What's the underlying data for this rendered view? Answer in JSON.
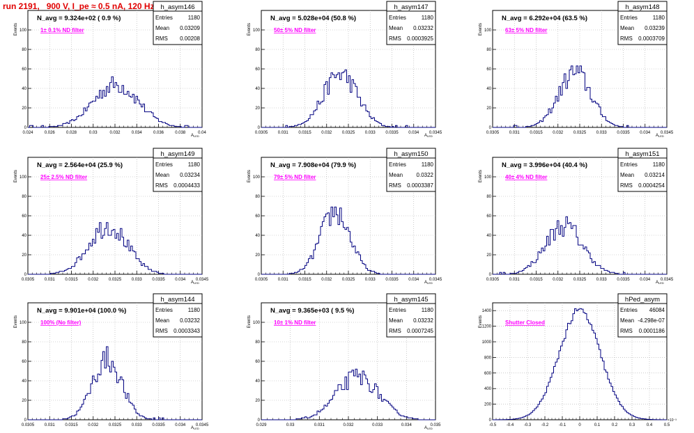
{
  "run_title": "run 2191,   900 V, I_pe ≈ 0.5 nA, 120 Hz",
  "colors": {
    "title": "#e00000",
    "annotation": "#ff00ff",
    "histogram": "#000080",
    "grid": "#aaaaaa"
  },
  "chart_data": [
    {
      "type": "histogram",
      "name": "h_asym146",
      "navg": "N_avg = 9.324e+02 ( 0.9 %)",
      "filter": "1± 0.1% ND filter",
      "stats": {
        "entries_label": "Entries",
        "entries": "1180",
        "mean_label": "Mean",
        "mean": "0.03209",
        "rms_label": "RMS",
        "rms": "0.00208"
      },
      "ylabel": "Events",
      "xlabel": "A",
      "xlim": [
        0.024,
        0.04
      ],
      "ylim": [
        0,
        120
      ],
      "xticks": [
        "0.024",
        "0.026",
        "0.028",
        "0.03",
        "0.032",
        "0.034",
        "0.036",
        "0.038",
        "0.04"
      ],
      "yticks": [
        "0",
        "20",
        "40",
        "60",
        "80",
        "100"
      ],
      "center": 0.03209,
      "sigma": 0.00208,
      "peak": 44,
      "nbins": 100
    },
    {
      "type": "histogram",
      "name": "h_asym147",
      "navg": "N_avg = 5.028e+04 (50.8 %)",
      "filter": "50± 5% ND filter",
      "stats": {
        "entries_label": "Entries",
        "entries": "1180",
        "mean_label": "Mean",
        "mean": "0.03232",
        "rms_label": "RMS",
        "rms": "0.0003925"
      },
      "ylabel": "Events",
      "xlabel": "A",
      "xlim": [
        0.0305,
        0.0345
      ],
      "ylim": [
        0,
        120
      ],
      "xticks": [
        "0.0305",
        "0.031",
        "0.0315",
        "0.032",
        "0.0325",
        "0.033",
        "0.0335",
        "0.034",
        "0.0345"
      ],
      "yticks": [
        "0",
        "20",
        "40",
        "60",
        "80",
        "100"
      ],
      "center": 0.03232,
      "sigma": 0.0003925,
      "peak": 55,
      "nbins": 100
    },
    {
      "type": "histogram",
      "name": "h_asym148",
      "navg": "N_avg = 6.292e+04 (63.5 %)",
      "filter": "63± 5% ND filter",
      "stats": {
        "entries_label": "Entries",
        "entries": "1180",
        "mean_label": "Mean",
        "mean": "0.03239",
        "rms_label": "RMS",
        "rms": "0.0003709"
      },
      "ylabel": "Events",
      "xlabel": "A",
      "xlim": [
        0.0305,
        0.0345
      ],
      "ylim": [
        0,
        120
      ],
      "xticks": [
        "0.0305",
        "0.031",
        "0.0315",
        "0.032",
        "0.0325",
        "0.033",
        "0.0335",
        "0.034",
        "0.0345"
      ],
      "yticks": [
        "0",
        "20",
        "40",
        "60",
        "80",
        "100"
      ],
      "center": 0.03239,
      "sigma": 0.0003709,
      "peak": 56,
      "nbins": 100
    },
    {
      "type": "histogram",
      "name": "h_asym149",
      "navg": "N_avg = 2.564e+04 (25.9 %)",
      "filter": "25± 2.5% ND filter",
      "stats": {
        "entries_label": "Entries",
        "entries": "1180",
        "mean_label": "Mean",
        "mean": "0.03234",
        "rms_label": "RMS",
        "rms": "0.0004433"
      },
      "ylabel": "Events",
      "xlabel": "A",
      "xlim": [
        0.0305,
        0.0345
      ],
      "ylim": [
        0,
        120
      ],
      "xticks": [
        "0.0305",
        "0.031",
        "0.0315",
        "0.032",
        "0.0325",
        "0.033",
        "0.0335",
        "0.034",
        "0.0345"
      ],
      "yticks": [
        "0",
        "20",
        "40",
        "60",
        "80",
        "100"
      ],
      "center": 0.03234,
      "sigma": 0.0004433,
      "peak": 50,
      "nbins": 100
    },
    {
      "type": "histogram",
      "name": "h_asym150",
      "navg": "N_avg = 7.908e+04 (79.9 %)",
      "filter": "79± 5% ND filter",
      "stats": {
        "entries_label": "Entries",
        "entries": "1180",
        "mean_label": "Mean",
        "mean": "0.0322",
        "rms_label": "RMS",
        "rms": "0.0003387"
      },
      "ylabel": "Events",
      "xlabel": "A",
      "xlim": [
        0.0305,
        0.0345
      ],
      "ylim": [
        0,
        120
      ],
      "xticks": [
        "0.0305",
        "0.031",
        "0.0315",
        "0.032",
        "0.0325",
        "0.033",
        "0.0335",
        "0.034",
        "0.0345"
      ],
      "yticks": [
        "0",
        "20",
        "40",
        "60",
        "80",
        "100"
      ],
      "center": 0.0322,
      "sigma": 0.0003387,
      "peak": 64,
      "nbins": 100
    },
    {
      "type": "histogram",
      "name": "h_asym151",
      "navg": "N_avg = 3.996e+04 (40.4 %)",
      "filter": "40± 4% ND filter",
      "stats": {
        "entries_label": "Entries",
        "entries": "1180",
        "mean_label": "Mean",
        "mean": "0.03214",
        "rms_label": "RMS",
        "rms": "0.0004254"
      },
      "ylabel": "Events",
      "xlabel": "A",
      "xlim": [
        0.0305,
        0.0345
      ],
      "ylim": [
        0,
        120
      ],
      "xticks": [
        "0.0305",
        "0.031",
        "0.0315",
        "0.032",
        "0.0325",
        "0.033",
        "0.0335",
        "0.034",
        "0.0345"
      ],
      "yticks": [
        "0",
        "20",
        "40",
        "60",
        "80",
        "100"
      ],
      "center": 0.03214,
      "sigma": 0.0004254,
      "peak": 50,
      "nbins": 100
    },
    {
      "type": "histogram",
      "name": "h_asym144",
      "navg": "N_avg = 9.901e+04 (100.0 %)",
      "filter": "100% (No filter)",
      "stats": {
        "entries_label": "Entries",
        "entries": "1180",
        "mean_label": "Mean",
        "mean": "0.03232",
        "rms_label": "RMS",
        "rms": "0.0003343"
      },
      "ylabel": "Events",
      "xlabel": "A",
      "xlim": [
        0.0305,
        0.0345
      ],
      "ylim": [
        0,
        120
      ],
      "xticks": [
        "0.0305",
        "0.031",
        "0.0315",
        "0.032",
        "0.0325",
        "0.033",
        "0.0335",
        "0.034",
        "0.0345"
      ],
      "yticks": [
        "0",
        "20",
        "40",
        "60",
        "80",
        "100"
      ],
      "center": 0.03232,
      "sigma": 0.0003343,
      "peak": 62,
      "nbins": 100
    },
    {
      "type": "histogram",
      "name": "h_asym145",
      "navg": "N_avg = 9.365e+03 ( 9.5 %)",
      "filter": "10± 1% ND filter",
      "stats": {
        "entries_label": "Entries",
        "entries": "1180",
        "mean_label": "Mean",
        "mean": "0.03232",
        "rms_label": "RMS",
        "rms": "0.0007245"
      },
      "ylabel": "Events",
      "xlabel": "A",
      "xlim": [
        0.029,
        0.035
      ],
      "ylim": [
        0,
        120
      ],
      "xticks": [
        "0.029",
        "0.03",
        "0.031",
        "0.032",
        "0.033",
        "0.034",
        "0.035"
      ],
      "yticks": [
        "0",
        "20",
        "40",
        "60",
        "80",
        "100"
      ],
      "center": 0.03232,
      "sigma": 0.0007245,
      "peak": 44,
      "nbins": 100
    },
    {
      "type": "histogram",
      "name": "hPed_asym",
      "navg": "",
      "filter": "Shutter Closed",
      "stats": {
        "entries_label": "Entries",
        "entries": "46084",
        "mean_label": "Mean",
        "mean": "-4.298e-07",
        "rms_label": "RMS",
        "rms": "0.0001186"
      },
      "ylabel": "Events",
      "xlabel": "",
      "xlim": [
        -0.5,
        0.5
      ],
      "ylim": [
        0,
        1500
      ],
      "xticks": [
        "-0.5",
        "-0.4",
        "-0.3",
        "-0.2",
        "-0.1",
        "0",
        "0.1",
        "0.2",
        "0.3",
        "0.4",
        "0.5"
      ],
      "yticks": [
        "0",
        "200",
        "400",
        "600",
        "800",
        "1000",
        "1200",
        "1400"
      ],
      "exponent": "×10⁻³",
      "center": 0.0,
      "sigma": 0.1186,
      "peak": 1400,
      "nbins": 100
    }
  ]
}
